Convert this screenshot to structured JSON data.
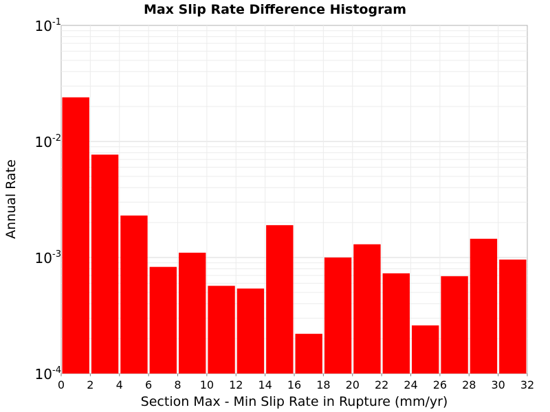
{
  "chart_data": {
    "type": "bar",
    "title": "Max Slip Rate Difference Histogram",
    "xlabel": "Section Max - Min Slip Rate in Rupture (mm/yr)",
    "ylabel": "Annual Rate",
    "x_ticks": [
      "0",
      "2",
      "4",
      "6",
      "8",
      "10",
      "12",
      "14",
      "16",
      "18",
      "20",
      "22",
      "24",
      "26",
      "28",
      "30",
      "32"
    ],
    "y_ticks": [
      {
        "base": "10",
        "exp": "-1"
      },
      {
        "base": "10",
        "exp": "-2"
      },
      {
        "base": "10",
        "exp": "-3"
      },
      {
        "base": "10",
        "exp": "-4"
      }
    ],
    "xlim": [
      0,
      32
    ],
    "ylim": [
      0.0001,
      0.1
    ],
    "y_scale": "log",
    "grid": true,
    "bar_color": "#ff0000",
    "bin_width": 2,
    "bins": [
      {
        "x_start": 0,
        "x_end": 2,
        "value": 0.024
      },
      {
        "x_start": 2,
        "x_end": 4,
        "value": 0.0077
      },
      {
        "x_start": 4,
        "x_end": 6,
        "value": 0.0023
      },
      {
        "x_start": 6,
        "x_end": 8,
        "value": 0.00083
      },
      {
        "x_start": 8,
        "x_end": 10,
        "value": 0.0011
      },
      {
        "x_start": 10,
        "x_end": 12,
        "value": 0.00057
      },
      {
        "x_start": 12,
        "x_end": 14,
        "value": 0.00054
      },
      {
        "x_start": 14,
        "x_end": 16,
        "value": 0.0019
      },
      {
        "x_start": 16,
        "x_end": 18,
        "value": 0.00022
      },
      {
        "x_start": 18,
        "x_end": 20,
        "value": 0.001
      },
      {
        "x_start": 20,
        "x_end": 22,
        "value": 0.0013
      },
      {
        "x_start": 22,
        "x_end": 24,
        "value": 0.00073
      },
      {
        "x_start": 24,
        "x_end": 26,
        "value": 0.00026
      },
      {
        "x_start": 26,
        "x_end": 28,
        "value": 0.00069
      },
      {
        "x_start": 28,
        "x_end": 30,
        "value": 0.00145
      },
      {
        "x_start": 30,
        "x_end": 32,
        "value": 0.00096
      }
    ]
  }
}
